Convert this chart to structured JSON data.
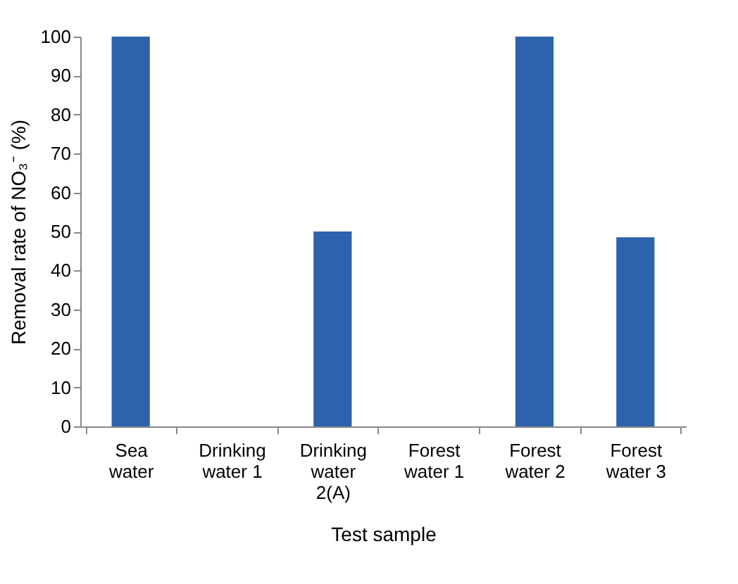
{
  "chart_data": {
    "type": "bar",
    "xlabel": "Test sample",
    "ylabel": "Removal rate of NO₃⁻ (%)",
    "categories": [
      "Sea water",
      "Drinking water 1",
      "Drinking water 2(A)",
      "Forest water 1",
      "Forest water 2",
      "Forest water 3"
    ],
    "values": [
      100,
      0,
      50,
      0,
      100,
      48.5
    ],
    "color": "#2e62ad",
    "ylim": [
      0,
      100
    ],
    "yticks": [
      0,
      10,
      20,
      30,
      40,
      50,
      60,
      70,
      80,
      90,
      100
    ],
    "grid": false
  }
}
